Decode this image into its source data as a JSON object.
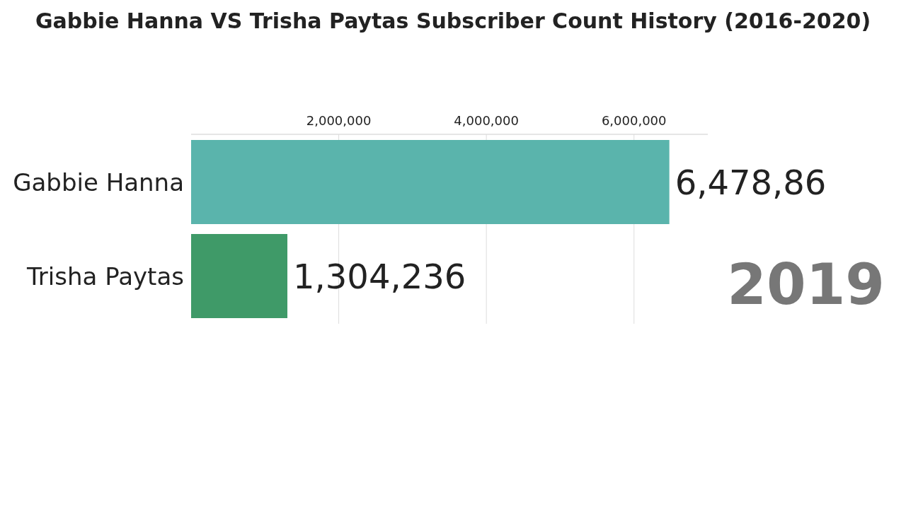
{
  "chart_data": {
    "type": "bar",
    "orientation": "horizontal",
    "title": "Gabbie Hanna VS Trisha Paytas Subscriber Count History (2016-2020)",
    "categories": [
      "Gabbie Hanna",
      "Trisha Paytas"
    ],
    "values": [
      6478860,
      1304236
    ],
    "colors": [
      "#5ab4ac",
      "#3f9a68"
    ],
    "value_labels": [
      "6,478,86",
      "1,304,236"
    ],
    "xlim": [
      0,
      7000000
    ],
    "xticks": [
      {
        "value": 2000000,
        "label": "2,000,000"
      },
      {
        "value": 4000000,
        "label": "4,000,000"
      },
      {
        "value": 6000000,
        "label": "6,000,000"
      }
    ],
    "grid": "x",
    "annotations": [
      "2019"
    ]
  }
}
